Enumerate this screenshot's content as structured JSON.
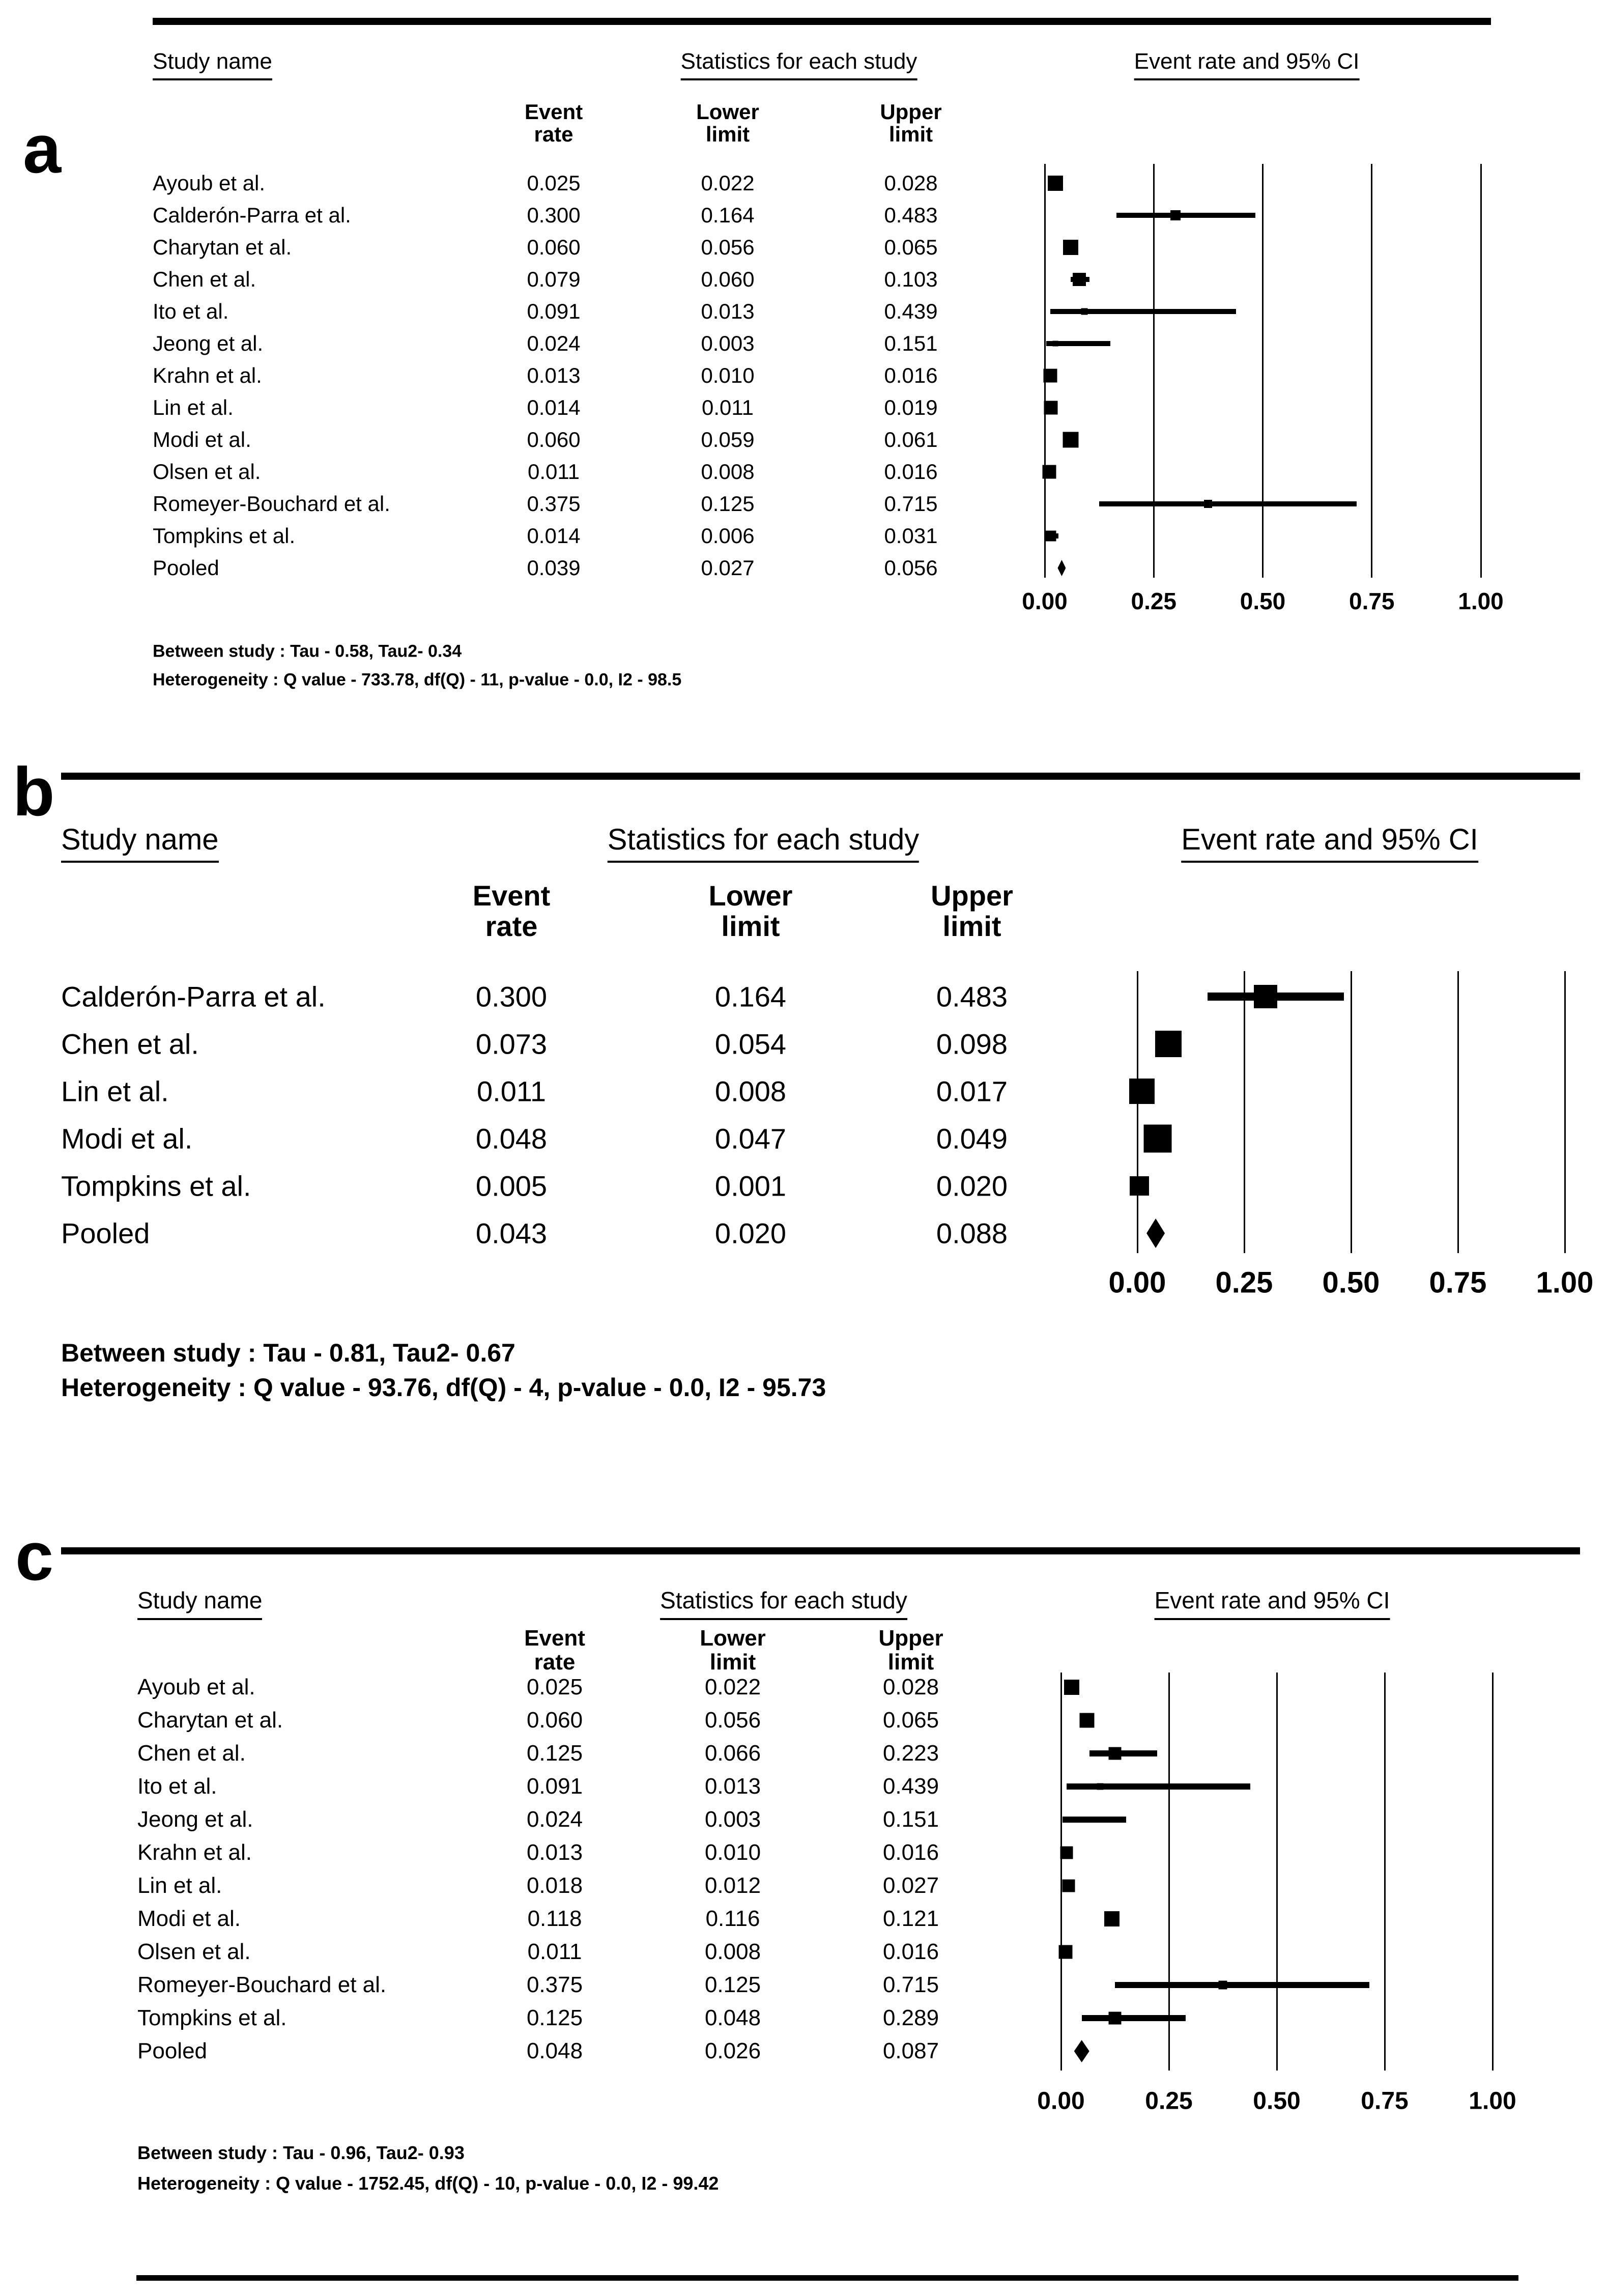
{
  "chart_data": [
    {
      "panel": "a",
      "type": "scatter",
      "subtype": "forest-plot",
      "title_row": {
        "study": "Study name",
        "stats": "Statistics for each study",
        "plot": "Event rate and 95% CI"
      },
      "col_headers": [
        [
          "Event",
          "rate"
        ],
        [
          "Lower",
          "limit"
        ],
        [
          "Upper",
          "limit"
        ]
      ],
      "axis_ticks": [
        "0.00",
        "0.25",
        "0.50",
        "0.75",
        "1.00"
      ],
      "xlim": [
        0,
        1
      ],
      "grid": true,
      "studies": [
        {
          "name": "Ayoub et al.",
          "event": "0.025",
          "lower": "0.022",
          "upper": "0.028",
          "size": 30
        },
        {
          "name": "Calderón-Parra et al.",
          "event": "0.300",
          "lower": "0.164",
          "upper": "0.483",
          "size": 20
        },
        {
          "name": "Charytan et al.",
          "event": "0.060",
          "lower": "0.056",
          "upper": "0.065",
          "size": 30
        },
        {
          "name": "Chen et al.",
          "event": "0.079",
          "lower": "0.060",
          "upper": "0.103",
          "size": 26
        },
        {
          "name": "Ito et al.",
          "event": "0.091",
          "lower": "0.013",
          "upper": "0.439",
          "size": 13
        },
        {
          "name": "Jeong et al.",
          "event": "0.024",
          "lower": "0.003",
          "upper": "0.151",
          "size": 11
        },
        {
          "name": "Krahn et al.",
          "event": "0.013",
          "lower": "0.010",
          "upper": "0.016",
          "size": 27
        },
        {
          "name": "Lin et al.",
          "event": "0.014",
          "lower": "0.011",
          "upper": "0.019",
          "size": 27
        },
        {
          "name": "Modi et al.",
          "event": "0.060",
          "lower": "0.059",
          "upper": "0.061",
          "size": 31
        },
        {
          "name": "Olsen et al.",
          "event": "0.011",
          "lower": "0.008",
          "upper": "0.016",
          "size": 27
        },
        {
          "name": "Romeyer-Bouchard et al.",
          "event": "0.375",
          "lower": "0.125",
          "upper": "0.715",
          "size": 16
        },
        {
          "name": "Tompkins et al.",
          "event": "0.014",
          "lower": "0.006",
          "upper": "0.031",
          "size": 21
        },
        {
          "name": "Pooled",
          "event": "0.039",
          "lower": "0.027",
          "upper": "0.056",
          "pooled": true,
          "dw": 16,
          "dh": 32
        }
      ],
      "notes": [
        "Between study : Tau - 0.58, Tau2- 0.34",
        "Heterogeneity : Q value - 733.78, df(Q) - 11, p-value - 0.0, I2 - 98.5"
      ]
    },
    {
      "panel": "b",
      "type": "scatter",
      "subtype": "forest-plot",
      "title_row": {
        "study": "Study name",
        "stats": "Statistics for each study",
        "plot": "Event rate and 95% CI"
      },
      "col_headers": [
        [
          "Event",
          "rate"
        ],
        [
          "Lower",
          "limit"
        ],
        [
          "Upper",
          "limit"
        ]
      ],
      "axis_ticks": [
        "0.00",
        "0.25",
        "0.50",
        "0.75",
        "1.00"
      ],
      "xlim": [
        0,
        1
      ],
      "grid": true,
      "studies": [
        {
          "name": "Calderón-Parra et al.",
          "event": "0.300",
          "lower": "0.164",
          "upper": "0.483",
          "size": 46
        },
        {
          "name": "Chen et al.",
          "event": "0.073",
          "lower": "0.054",
          "upper": "0.098",
          "size": 52
        },
        {
          "name": "Lin et al.",
          "event": "0.011",
          "lower": "0.008",
          "upper": "0.017",
          "size": 50
        },
        {
          "name": "Modi et al.",
          "event": "0.048",
          "lower": "0.047",
          "upper": "0.049",
          "size": 55
        },
        {
          "name": "Tompkins et al.",
          "event": "0.005",
          "lower": "0.001",
          "upper": "0.020",
          "size": 38
        },
        {
          "name": "Pooled",
          "event": "0.043",
          "lower": "0.020",
          "upper": "0.088",
          "pooled": true,
          "dw": 36,
          "dh": 58
        }
      ],
      "notes": [
        "Between study : Tau - 0.81, Tau2- 0.67",
        "Heterogeneity : Q value - 93.76, df(Q) - 4, p-value - 0.0, I2 - 95.73"
      ]
    },
    {
      "panel": "c",
      "type": "scatter",
      "subtype": "forest-plot",
      "title_row": {
        "study": "Study name",
        "stats": "Statistics for each study",
        "plot": "Event rate and 95% CI"
      },
      "col_headers": [
        [
          "Event",
          "rate"
        ],
        [
          "Lower",
          "limit"
        ],
        [
          "Upper",
          "limit"
        ]
      ],
      "axis_ticks": [
        "0.00",
        "0.25",
        "0.50",
        "0.75",
        "1.00"
      ],
      "xlim": [
        0,
        1
      ],
      "grid": true,
      "studies": [
        {
          "name": "Ayoub et al.",
          "event": "0.025",
          "lower": "0.022",
          "upper": "0.028",
          "size": 30
        },
        {
          "name": "Charytan et al.",
          "event": "0.060",
          "lower": "0.056",
          "upper": "0.065",
          "size": 29
        },
        {
          "name": "Chen et al.",
          "event": "0.125",
          "lower": "0.066",
          "upper": "0.223",
          "size": 25
        },
        {
          "name": "Ito et al.",
          "event": "0.091",
          "lower": "0.013",
          "upper": "0.439",
          "size": 13
        },
        {
          "name": "Jeong et al.",
          "event": "0.024",
          "lower": "0.003",
          "upper": "0.151",
          "size": 11
        },
        {
          "name": "Krahn et al.",
          "event": "0.013",
          "lower": "0.010",
          "upper": "0.016",
          "size": 25
        },
        {
          "name": "Lin et al.",
          "event": "0.018",
          "lower": "0.012",
          "upper": "0.027",
          "size": 25
        },
        {
          "name": "Modi et al.",
          "event": "0.118",
          "lower": "0.116",
          "upper": "0.121",
          "size": 30
        },
        {
          "name": "Olsen et al.",
          "event": "0.011",
          "lower": "0.008",
          "upper": "0.016",
          "size": 27
        },
        {
          "name": "Romeyer-Bouchard et al.",
          "event": "0.375",
          "lower": "0.125",
          "upper": "0.715",
          "size": 17
        },
        {
          "name": "Tompkins et al.",
          "event": "0.125",
          "lower": "0.048",
          "upper": "0.289",
          "size": 25
        },
        {
          "name": "Pooled",
          "event": "0.048",
          "lower": "0.026",
          "upper": "0.087",
          "pooled": true,
          "dw": 30,
          "dh": 44
        }
      ],
      "notes": [
        "Between study : Tau - 0.96, Tau2- 0.93",
        "Heterogeneity : Q value - 1752.45, df(Q) - 10, p-value - 0.0, I2 - 99.42"
      ]
    }
  ]
}
